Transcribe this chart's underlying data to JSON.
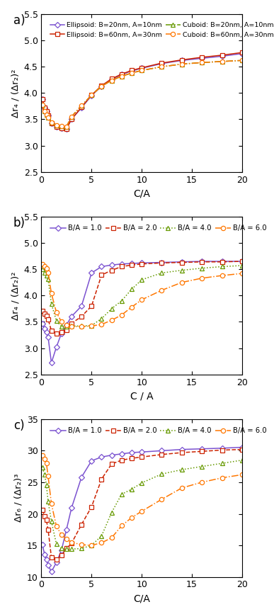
{
  "panel_a": {
    "title": "a)",
    "xlabel": "C/A",
    "ylabel": "Δr₄ / (Δr₂)²",
    "ylim": [
      2.5,
      5.5
    ],
    "xlim": [
      0,
      20
    ],
    "xticks": [
      0,
      5,
      10,
      15,
      20
    ],
    "yticks": [
      2.5,
      3.0,
      3.5,
      4.0,
      4.5,
      5.0,
      5.5
    ],
    "legend_items": [
      {
        "label": "Ellipsoid: B=20nm, A=10nm",
        "color": "#7B52D0",
        "marker": "D",
        "linestyle": "-"
      },
      {
        "label": "Ellipsoid: B=60nm, A=30nm",
        "color": "#CC2200",
        "marker": "s",
        "linestyle": "-"
      },
      {
        "label": "Cuboid: B=20nm, A=10nm",
        "color": "#669900",
        "marker": "^",
        "linestyle": "-."
      },
      {
        "label": "Cuboid: B=60nm, A=30nm",
        "color": "#FF7700",
        "marker": "o",
        "linestyle": "-."
      }
    ],
    "series": [
      {
        "series_idx": 0,
        "x": [
          0.1,
          0.33,
          0.5,
          0.67,
          1.0,
          1.5,
          2.0,
          2.5,
          3.0,
          4.0,
          5.0,
          6.0,
          7.0,
          8.0,
          9.0,
          10.0,
          12.0,
          14.0,
          16.0,
          18.0,
          20.0
        ],
        "y": [
          3.88,
          3.72,
          3.65,
          3.57,
          3.43,
          3.36,
          3.33,
          3.32,
          3.5,
          3.72,
          3.95,
          4.13,
          4.26,
          4.35,
          4.42,
          4.47,
          4.56,
          4.62,
          4.66,
          4.7,
          4.75
        ]
      },
      {
        "series_idx": 1,
        "x": [
          0.1,
          0.33,
          0.5,
          0.67,
          1.0,
          1.5,
          2.0,
          2.5,
          3.0,
          4.0,
          5.0,
          6.0,
          7.0,
          8.0,
          9.0,
          10.0,
          12.0,
          14.0,
          16.0,
          18.0,
          20.0
        ],
        "y": [
          3.88,
          3.72,
          3.65,
          3.57,
          3.43,
          3.36,
          3.33,
          3.32,
          3.5,
          3.73,
          3.96,
          4.14,
          4.27,
          4.36,
          4.43,
          4.48,
          4.57,
          4.63,
          4.68,
          4.72,
          4.77
        ]
      },
      {
        "series_idx": 2,
        "x": [
          0.1,
          0.33,
          0.5,
          0.67,
          1.0,
          1.5,
          2.0,
          2.5,
          3.0,
          4.0,
          5.0,
          6.0,
          7.0,
          8.0,
          9.0,
          10.0,
          12.0,
          14.0,
          16.0,
          18.0,
          20.0
        ],
        "y": [
          3.77,
          3.65,
          3.59,
          3.53,
          3.44,
          3.39,
          3.37,
          3.36,
          3.55,
          3.76,
          3.96,
          4.13,
          4.24,
          4.32,
          4.38,
          4.43,
          4.5,
          4.55,
          4.58,
          4.6,
          4.62
        ]
      },
      {
        "series_idx": 3,
        "x": [
          0.1,
          0.33,
          0.5,
          0.67,
          1.0,
          1.5,
          2.0,
          2.5,
          3.0,
          4.0,
          5.0,
          6.0,
          7.0,
          8.0,
          9.0,
          10.0,
          12.0,
          14.0,
          16.0,
          18.0,
          20.0
        ],
        "y": [
          3.77,
          3.65,
          3.59,
          3.53,
          3.44,
          3.39,
          3.37,
          3.36,
          3.55,
          3.76,
          3.96,
          4.13,
          4.24,
          4.32,
          4.38,
          4.43,
          4.5,
          4.55,
          4.58,
          4.6,
          4.62
        ]
      }
    ]
  },
  "panel_b": {
    "title": "b)",
    "xlabel": "C / A",
    "ylabel": "Δr₄ / (Δr₂)²",
    "ylim": [
      2.5,
      5.5
    ],
    "xlim": [
      0,
      20
    ],
    "xticks": [
      0,
      5,
      10,
      15,
      20
    ],
    "yticks": [
      2.5,
      3.0,
      3.5,
      4.0,
      4.5,
      5.0,
      5.5
    ],
    "legend_items": [
      {
        "label": "B/A = 1.0",
        "color": "#7B52D0",
        "marker": "D",
        "linestyle": "-"
      },
      {
        "label": "B/A = 2.0",
        "color": "#CC2200",
        "marker": "s",
        "linestyle": "--"
      },
      {
        "label": "B/A = 4.0",
        "color": "#669900",
        "marker": "^",
        "linestyle": ":"
      },
      {
        "label": "B/A = 6.0",
        "color": "#FF7700",
        "marker": "o",
        "linestyle": "-."
      }
    ],
    "series": [
      {
        "series_idx": 0,
        "x": [
          0.1,
          0.33,
          0.5,
          0.67,
          1.0,
          1.5,
          2.0,
          2.5,
          3.0,
          4.0,
          5.0,
          6.0,
          7.0,
          8.0,
          9.0,
          10.0,
          12.0,
          14.0,
          16.0,
          18.0,
          20.0
        ],
        "y": [
          3.46,
          3.37,
          3.3,
          3.21,
          2.72,
          3.02,
          3.28,
          3.44,
          3.6,
          3.8,
          4.43,
          4.55,
          4.58,
          4.6,
          4.61,
          4.62,
          4.63,
          4.64,
          4.65,
          4.65,
          4.65
        ]
      },
      {
        "series_idx": 1,
        "x": [
          0.1,
          0.33,
          0.5,
          0.67,
          1.0,
          1.5,
          2.0,
          2.5,
          3.0,
          4.0,
          5.0,
          6.0,
          7.0,
          8.0,
          9.0,
          10.0,
          12.0,
          14.0,
          16.0,
          18.0,
          20.0
        ],
        "y": [
          3.71,
          3.65,
          3.61,
          3.55,
          3.33,
          3.28,
          3.3,
          3.35,
          3.47,
          3.6,
          3.8,
          4.39,
          4.48,
          4.55,
          4.58,
          4.6,
          4.62,
          4.63,
          4.64,
          4.64,
          4.65
        ]
      },
      {
        "series_idx": 2,
        "x": [
          0.1,
          0.33,
          0.5,
          0.67,
          1.0,
          1.5,
          2.0,
          2.5,
          3.0,
          4.0,
          5.0,
          6.0,
          7.0,
          8.0,
          9.0,
          10.0,
          12.0,
          14.0,
          16.0,
          18.0,
          20.0
        ],
        "y": [
          4.5,
          4.43,
          4.38,
          4.31,
          3.84,
          3.52,
          3.41,
          3.41,
          3.42,
          3.42,
          3.43,
          3.56,
          3.75,
          3.9,
          4.12,
          4.3,
          4.43,
          4.48,
          4.52,
          4.55,
          4.57
        ]
      },
      {
        "series_idx": 3,
        "x": [
          0.1,
          0.33,
          0.5,
          0.67,
          1.0,
          1.5,
          2.0,
          2.5,
          3.0,
          4.0,
          5.0,
          6.0,
          7.0,
          8.0,
          9.0,
          10.0,
          12.0,
          14.0,
          16.0,
          18.0,
          20.0
        ],
        "y": [
          4.6,
          4.55,
          4.52,
          4.44,
          4.04,
          3.68,
          3.5,
          3.44,
          3.41,
          3.41,
          3.42,
          3.45,
          3.53,
          3.63,
          3.78,
          3.92,
          4.1,
          4.25,
          4.33,
          4.38,
          4.42
        ]
      }
    ]
  },
  "panel_c": {
    "title": "c)",
    "xlabel": "C/A",
    "ylabel": "Δr₆ / (Δr₂)³",
    "ylim": [
      10,
      35
    ],
    "xlim": [
      0,
      20
    ],
    "xticks": [
      0,
      5,
      10,
      15,
      20
    ],
    "yticks": [
      10,
      15,
      20,
      25,
      30,
      35
    ],
    "legend_items": [
      {
        "label": "B/A = 1.0",
        "color": "#7B52D0",
        "marker": "D",
        "linestyle": "-"
      },
      {
        "label": "B/A = 2.0",
        "color": "#CC2200",
        "marker": "s",
        "linestyle": "--"
      },
      {
        "label": "B/A = 4.0",
        "color": "#669900",
        "marker": "^",
        "linestyle": ":"
      },
      {
        "label": "B/A = 6.0",
        "color": "#FF7700",
        "marker": "o",
        "linestyle": "-."
      }
    ],
    "series": [
      {
        "series_idx": 0,
        "x": [
          0.1,
          0.33,
          0.5,
          0.67,
          1.0,
          1.5,
          2.0,
          2.5,
          3.0,
          4.0,
          5.0,
          6.0,
          7.0,
          8.0,
          9.0,
          10.0,
          12.0,
          14.0,
          16.0,
          18.0,
          20.0
        ],
        "y": [
          15.1,
          13.5,
          12.8,
          11.9,
          10.8,
          12.3,
          14.2,
          17.5,
          20.9,
          25.8,
          28.4,
          29.0,
          29.3,
          29.5,
          29.7,
          29.8,
          30.0,
          30.2,
          30.3,
          30.4,
          30.55
        ]
      },
      {
        "series_idx": 1,
        "x": [
          0.1,
          0.33,
          0.5,
          0.67,
          1.0,
          1.5,
          2.0,
          2.5,
          3.0,
          4.0,
          5.0,
          6.0,
          7.0,
          8.0,
          9.0,
          10.0,
          12.0,
          14.0,
          16.0,
          18.0,
          20.0
        ],
        "y": [
          20.6,
          19.6,
          19.0,
          17.5,
          13.1,
          12.8,
          13.4,
          14.5,
          15.3,
          18.3,
          21.1,
          25.5,
          27.9,
          28.5,
          28.8,
          29.0,
          29.4,
          29.7,
          29.9,
          30.1,
          30.2
        ]
      },
      {
        "series_idx": 2,
        "x": [
          0.1,
          0.33,
          0.5,
          0.67,
          1.0,
          1.5,
          2.0,
          2.5,
          3.0,
          4.0,
          5.0,
          6.0,
          7.0,
          8.0,
          9.0,
          10.0,
          12.0,
          14.0,
          16.0,
          18.0,
          20.0
        ],
        "y": [
          27.3,
          26.2,
          24.6,
          22.0,
          18.8,
          15.2,
          14.5,
          14.4,
          14.4,
          14.5,
          15.0,
          16.5,
          20.2,
          23.1,
          23.9,
          24.9,
          26.3,
          27.0,
          27.5,
          28.0,
          28.5
        ]
      },
      {
        "series_idx": 3,
        "x": [
          0.1,
          0.33,
          0.5,
          0.67,
          1.0,
          1.5,
          2.0,
          2.5,
          3.0,
          4.0,
          5.0,
          6.0,
          7.0,
          8.0,
          9.0,
          10.0,
          12.0,
          14.0,
          16.0,
          18.0,
          20.0
        ],
        "y": [
          29.3,
          28.7,
          28.0,
          26.0,
          21.6,
          18.0,
          16.7,
          16.0,
          15.5,
          15.1,
          15.0,
          15.4,
          16.2,
          18.1,
          19.4,
          20.4,
          22.3,
          24.1,
          25.0,
          25.7,
          26.2
        ]
      }
    ]
  }
}
